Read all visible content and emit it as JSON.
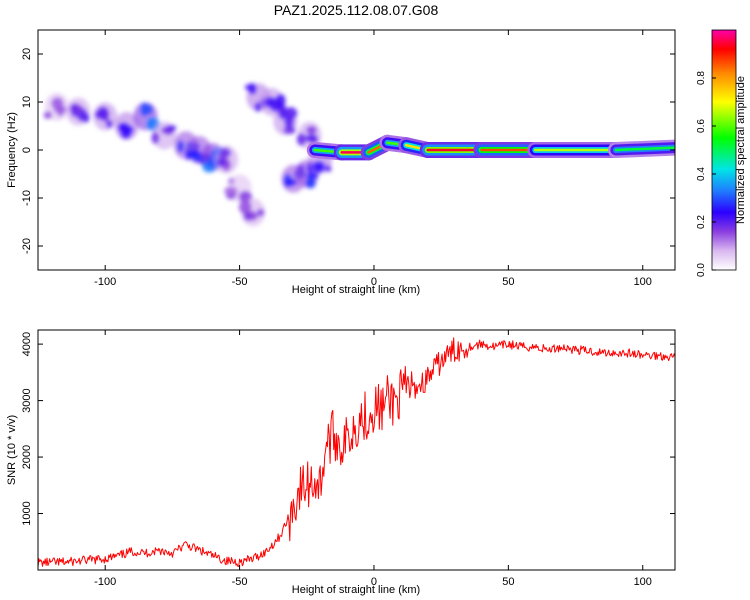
{
  "figure": {
    "title": "PAZ1.2025.112.08.07.G08"
  },
  "chart_data": [
    {
      "type": "heatmap",
      "xlabel": "Height of straight line (km)",
      "ylabel": "Frequency (Hz)",
      "xlim": [
        -125,
        112
      ],
      "ylim": [
        -25,
        25
      ],
      "xticks": [
        -100,
        -50,
        0,
        50,
        100
      ],
      "yticks": [
        -20,
        -10,
        0,
        10,
        20
      ],
      "grid": false,
      "colorbar": {
        "label": "Normalized spectral amplitude",
        "range": [
          0,
          1
        ],
        "ticks": [
          0.0,
          0.2,
          0.4,
          0.6,
          0.8
        ],
        "colormap": [
          "#ffffff",
          "#d9b8f0",
          "#8a3ee0",
          "#2b00ff",
          "#1f7dff",
          "#00e5e5",
          "#00ff00",
          "#ffff00",
          "#ff8800",
          "#ff0000",
          "#ff00aa"
        ]
      },
      "ridge": [
        {
          "x": -22,
          "f": 0.0,
          "amp": 0.3
        },
        {
          "x": -12,
          "f": -0.5,
          "amp": 0.95
        },
        {
          "x": -2,
          "f": -0.5,
          "amp": 0.95
        },
        {
          "x": 5,
          "f": 1.5,
          "amp": 0.7
        },
        {
          "x": 12,
          "f": 1.0,
          "amp": 0.55
        },
        {
          "x": 20,
          "f": 0.0,
          "amp": 0.9
        },
        {
          "x": 40,
          "f": 0.0,
          "amp": 0.95
        },
        {
          "x": 60,
          "f": 0.0,
          "amp": 0.75
        },
        {
          "x": 90,
          "f": 0.0,
          "amp": 0.6
        },
        {
          "x": 112,
          "f": 0.5,
          "amp": 0.55
        }
      ],
      "patches": [
        {
          "x": -118,
          "f": 9,
          "amp": 0.15
        },
        {
          "x": -110,
          "f": 8,
          "amp": 0.2
        },
        {
          "x": -100,
          "f": 7,
          "amp": 0.22
        },
        {
          "x": -92,
          "f": 5,
          "amp": 0.25
        },
        {
          "x": -85,
          "f": 7,
          "amp": 0.35
        },
        {
          "x": -78,
          "f": 3,
          "amp": 0.2
        },
        {
          "x": -70,
          "f": 1,
          "amp": 0.3
        },
        {
          "x": -65,
          "f": 0,
          "amp": 0.3
        },
        {
          "x": -60,
          "f": -1.5,
          "amp": 0.35
        },
        {
          "x": -55,
          "f": -2,
          "amp": 0.2
        },
        {
          "x": -50,
          "f": -8,
          "amp": 0.15
        },
        {
          "x": -45,
          "f": -13,
          "amp": 0.18
        },
        {
          "x": -43,
          "f": 11,
          "amp": 0.25
        },
        {
          "x": -38,
          "f": 10,
          "amp": 0.22
        },
        {
          "x": -33,
          "f": 6,
          "amp": 0.22
        },
        {
          "x": -30,
          "f": -6,
          "amp": 0.3
        },
        {
          "x": -25,
          "f": -5,
          "amp": 0.3
        },
        {
          "x": -24,
          "f": 3,
          "amp": 0.2
        },
        {
          "x": -20,
          "f": -2,
          "amp": 0.25
        }
      ]
    },
    {
      "type": "line",
      "xlabel": "Height of straight line (km)",
      "ylabel": "SNR (10 * v/v)",
      "xlim": [
        -125,
        112
      ],
      "ylim": [
        0,
        4250
      ],
      "xticks": [
        -100,
        -50,
        0,
        50,
        100
      ],
      "yticks": [
        1000,
        2000,
        3000,
        4000
      ],
      "grid": false,
      "series": [
        {
          "color": "#ff0000",
          "x": [
            -125,
            -115,
            -105,
            -100,
            -95,
            -90,
            -85,
            -80,
            -75,
            -70,
            -65,
            -60,
            -55,
            -50,
            -45,
            -40,
            -35,
            -32,
            -30,
            -28,
            -25,
            -22,
            -20,
            -18,
            -15,
            -12,
            -10,
            -8,
            -5,
            -2,
            0,
            3,
            5,
            8,
            10,
            13,
            15,
            18,
            20,
            25,
            30,
            35,
            40,
            45,
            50,
            55,
            60,
            65,
            70,
            75,
            80,
            85,
            90,
            95,
            100,
            105,
            112
          ],
          "y": [
            130,
            140,
            180,
            200,
            250,
            330,
            300,
            350,
            300,
            450,
            350,
            250,
            160,
            140,
            200,
            330,
            600,
            900,
            1100,
            1400,
            1500,
            1600,
            1500,
            2200,
            2400,
            2200,
            2300,
            2500,
            2700,
            2750,
            2900,
            2850,
            3000,
            3000,
            3100,
            3200,
            3250,
            3300,
            3400,
            3700,
            3900,
            3950,
            4000,
            3950,
            4000,
            3950,
            3950,
            3900,
            3950,
            3900,
            3880,
            3850,
            3850,
            3840,
            3800,
            3800,
            3780
          ]
        }
      ]
    }
  ]
}
